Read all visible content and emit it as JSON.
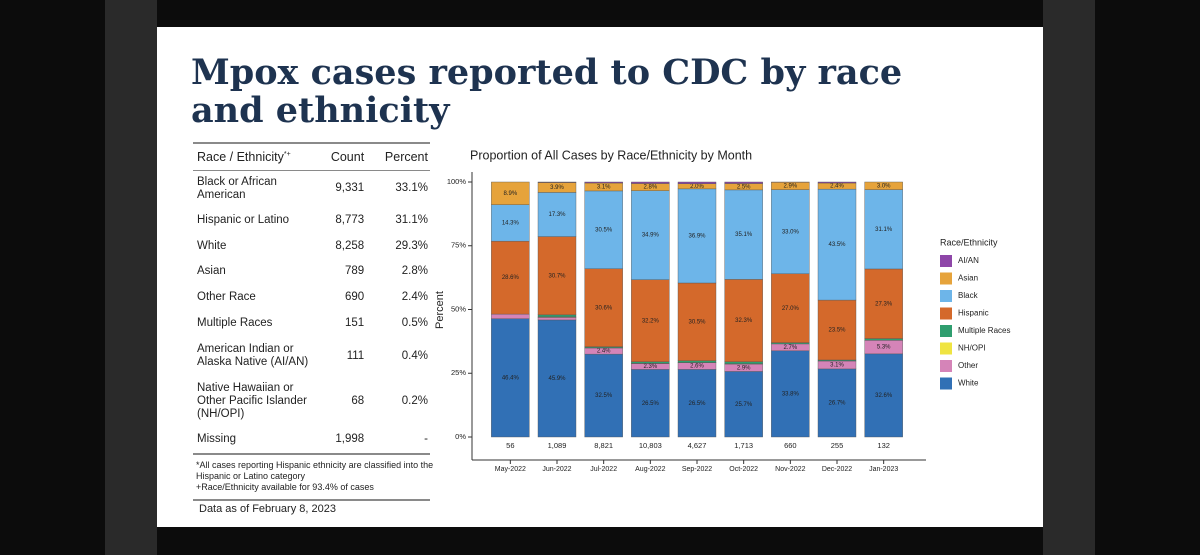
{
  "slide": {
    "title": "Mpox cases reported to CDC by race and ethnicity",
    "table": {
      "columns": [
        "Race / Ethnicity",
        "Count",
        "Percent"
      ],
      "header_marks": "*+",
      "rows": [
        [
          "Black or African American",
          "9,331",
          "33.1%"
        ],
        [
          "Hispanic or Latino",
          "8,773",
          "31.1%"
        ],
        [
          "White",
          "8,258",
          "29.3%"
        ],
        [
          "Asian",
          "789",
          "2.8%"
        ],
        [
          "Other Race",
          "690",
          "2.4%"
        ],
        [
          "Multiple Races",
          "151",
          "0.5%"
        ],
        [
          "American Indian or Alaska Native (AI/AN)",
          "111",
          "0.4%"
        ],
        [
          "Native Hawaiian or Other Pacific Islander (NH/OPI)",
          "68",
          "0.2%"
        ],
        [
          "Missing",
          "1,998",
          "-"
        ]
      ]
    },
    "footnotes": [
      "*All cases reporting Hispanic ethnicity are classified into the Hispanic or Latino category",
      "+Race/Ethnicity available for 93.4% of cases"
    ],
    "data_note": "Data as of February 8, 2023"
  },
  "chart_data": {
    "type": "stacked_bar",
    "title": "Proportion of All Cases by Race/Ethnicity by Month",
    "y_label": "Percent",
    "legend_title": "Race/Ethnicity",
    "legend_position": "right",
    "categories": [
      "May-2022",
      "Jun-2022",
      "Jul-2022",
      "Aug-2022",
      "Sep-2022",
      "Oct-2022",
      "Nov-2022",
      "Dec-2022",
      "Jan-2023"
    ],
    "counts": [
      "56",
      "1,089",
      "8,821",
      "10,803",
      "4,627",
      "1,713",
      "660",
      "255",
      "132"
    ],
    "ylim": [
      0,
      100
    ],
    "yticks": [
      {
        "value": 0,
        "label": "0%"
      },
      {
        "value": 25,
        "label": "25%"
      },
      {
        "value": 50,
        "label": "50%"
      },
      {
        "value": 75,
        "label": "75%"
      },
      {
        "value": 100,
        "label": "100%"
      }
    ],
    "legend_order": [
      "AI/AN",
      "Asian",
      "Black",
      "Hispanic",
      "Multiple Races",
      "NH/OPI",
      "Other",
      "White"
    ],
    "series": [
      {
        "name": "White",
        "color": "#3170b5",
        "values": [
          46.4,
          45.9,
          32.5,
          26.5,
          26.5,
          25.7,
          33.8,
          26.7,
          32.6
        ],
        "value_labels": [
          "46.4%",
          "45.9%",
          "32.5%",
          "26.5%",
          "26.5%",
          "25.7%",
          "33.8%",
          "26.7%",
          "32.6%"
        ]
      },
      {
        "name": "Other",
        "color": "#d584b8",
        "values": [
          1.8,
          1.0,
          2.4,
          2.3,
          2.6,
          2.9,
          2.7,
          3.1,
          5.3
        ],
        "value_labels": [
          null,
          null,
          "2.4%",
          "2.3%",
          "2.6%",
          "2.9%",
          "2.7%",
          "3.1%",
          "5.3%"
        ]
      },
      {
        "name": "NH/OPI",
        "color": "#efe442",
        "values": [
          0,
          0.2,
          0.1,
          0.1,
          0.1,
          0.1,
          0,
          0,
          0
        ]
      },
      {
        "name": "Multiple Races",
        "color": "#2f9e6f",
        "values": [
          0,
          0.8,
          0.4,
          0.6,
          0.7,
          0.8,
          0.5,
          0.4,
          0.7
        ]
      },
      {
        "name": "Hispanic",
        "color": "#d4692b",
        "values": [
          28.6,
          30.7,
          30.6,
          32.2,
          30.5,
          32.3,
          27.0,
          23.5,
          27.3
        ],
        "value_labels": [
          "28.6%",
          "30.7%",
          "30.6%",
          "32.2%",
          "30.5%",
          "32.3%",
          "27.0%",
          "23.5%",
          "27.3%"
        ]
      },
      {
        "name": "Black",
        "color": "#6db5e9",
        "values": [
          14.3,
          17.3,
          30.5,
          34.9,
          36.9,
          35.1,
          33.0,
          43.5,
          31.1
        ],
        "value_labels": [
          "14.3%",
          "17.3%",
          "30.5%",
          "34.9%",
          "36.9%",
          "35.1%",
          "33.0%",
          "43.5%",
          "31.1%"
        ]
      },
      {
        "name": "Asian",
        "color": "#e6a33b",
        "values": [
          8.9,
          3.9,
          3.1,
          2.8,
          2.0,
          2.5,
          2.9,
          2.4,
          3.0
        ],
        "value_labels": [
          "8.9%",
          "3.9%",
          "3.1%",
          "2.8%",
          "2.0%",
          "2.5%",
          "2.9%",
          "2.4%",
          "3.0%"
        ]
      },
      {
        "name": "AI/AN",
        "color": "#8e46a8",
        "values": [
          0,
          0.2,
          0.4,
          0.6,
          0.7,
          0.6,
          0.1,
          0.4,
          0
        ]
      }
    ]
  }
}
